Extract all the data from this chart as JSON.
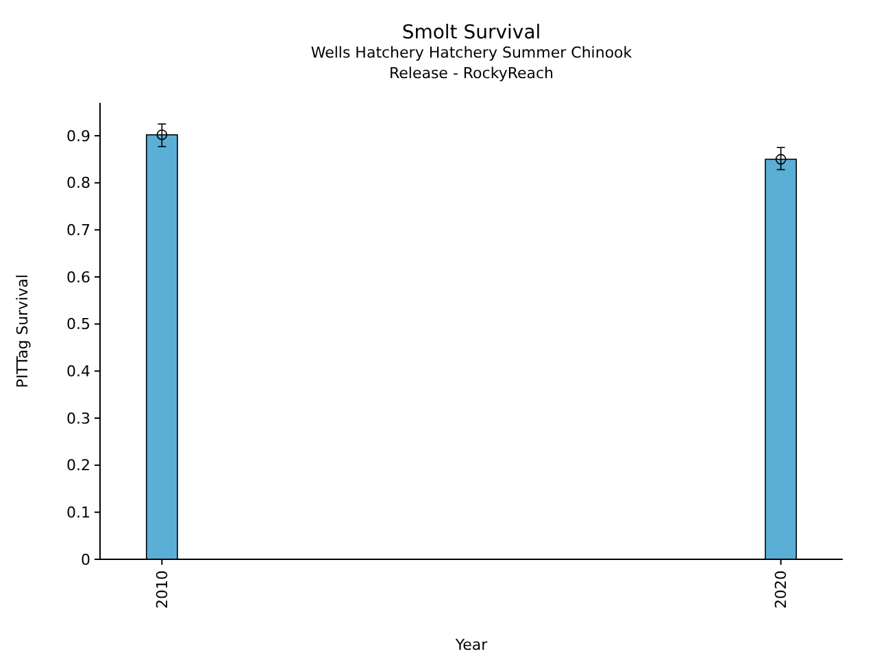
{
  "chart_data": {
    "type": "bar",
    "title": "Smolt Survival",
    "subtitle": "Wells Hatchery Hatchery Summer Chinook\nRelease - RockyReach",
    "xlabel": "Year",
    "ylabel": "PITTag Survival",
    "x": [
      2010,
      2020
    ],
    "xlim": [
      2009,
      2021
    ],
    "xticks": [
      2010,
      2020
    ],
    "ylim": [
      0,
      0.97
    ],
    "yticks": [
      0,
      0.1,
      0.2,
      0.3,
      0.4,
      0.5,
      0.6,
      0.7,
      0.8,
      0.9
    ],
    "series": [
      {
        "color": "#5bafd6",
        "values": [
          0.902,
          0.85
        ]
      },
      {
        "type": "scatter",
        "color": "#000000",
        "x": [
          2010,
          2020
        ],
        "values": [
          0.902,
          0.85
        ],
        "errors": [
          [
            0.877,
            0.925
          ],
          [
            0.828,
            0.875
          ]
        ]
      }
    ],
    "marker": "circle",
    "grid": false
  }
}
